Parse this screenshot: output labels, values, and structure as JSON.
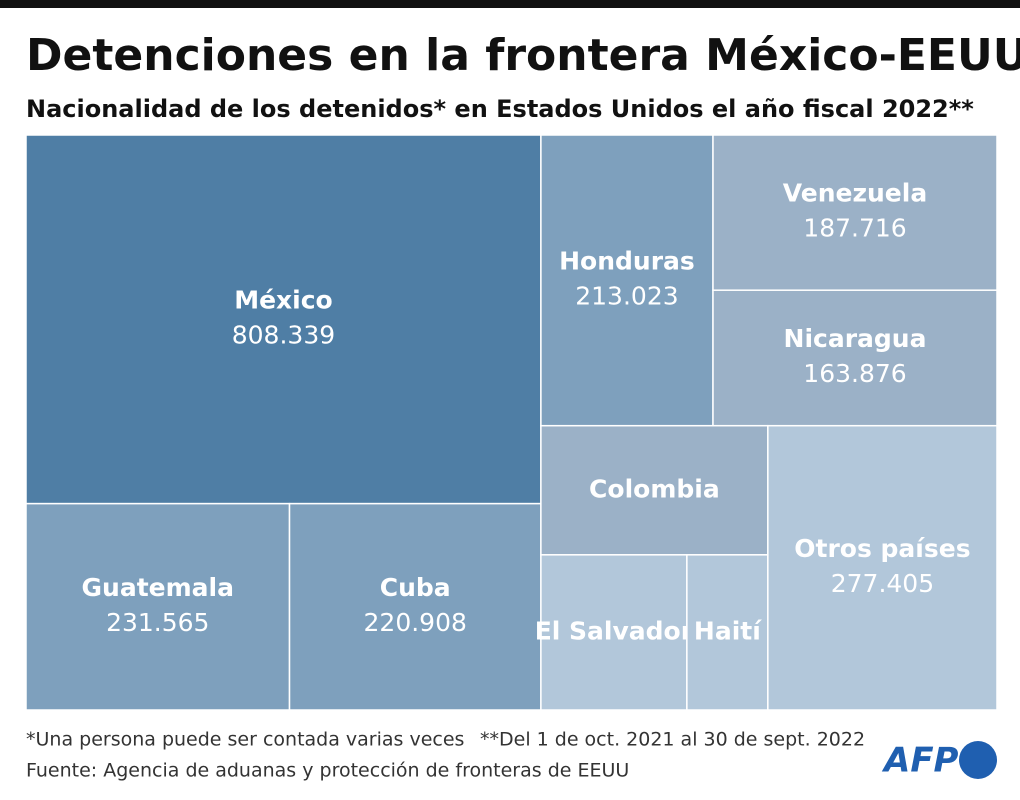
{
  "chart_data": {
    "type": "treemap",
    "title": "Detenciones en la frontera México-EEUU",
    "subtitle": "Nacionalidad de los detenidos* en Estados Unidos el año fiscal 2022**",
    "categories": [
      "México",
      "Guatemala",
      "Cuba",
      "Honduras",
      "Venezuela",
      "Nicaragua",
      "Colombia",
      "El Salvador",
      "Haití",
      "Otros países"
    ],
    "values": [
      808339,
      231565,
      220908,
      213023,
      187716,
      163876,
      124800,
      96450,
      53500,
      277405
    ],
    "value_labels": [
      "808.339",
      "231.565",
      "220.908",
      "213.023",
      "187.716",
      "163.876",
      null,
      null,
      null,
      "277.405"
    ],
    "colors": [
      "#4f7ea5",
      "#7ea0bd",
      "#7ea0bd",
      "#7ea0bd",
      "#9bb1c7",
      "#9bb1c7",
      "#9bb1c7",
      "#b2c7da",
      "#b2c7da",
      "#b2c7da"
    ],
    "notes": [
      "*Una persona puede ser contada varias veces",
      "**Del 1 de oct. 2021 al 30 de sept. 2022"
    ],
    "source": "Fuente: Agencia de aduanas y protección de fronteras de EEUU",
    "logo": "AFP"
  }
}
